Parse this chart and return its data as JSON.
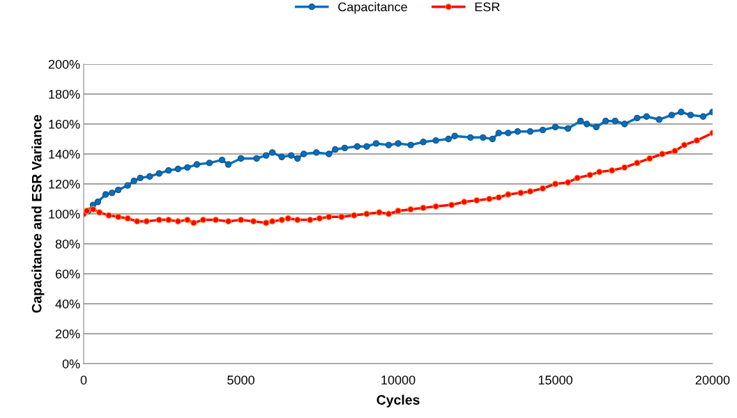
{
  "chart_data": {
    "type": "line",
    "xlabel": "Cycles",
    "ylabel": "Capacitance and ESR Variance",
    "series": [
      {
        "name": "Capacitance",
        "color": "#0070c0",
        "x": [
          0,
          150,
          300,
          450,
          700,
          900,
          1100,
          1400,
          1600,
          1800,
          2100,
          2400,
          2700,
          3000,
          3300,
          3600,
          4000,
          4400,
          4600,
          5000,
          5500,
          5800,
          6000,
          6300,
          6600,
          6800,
          7000,
          7400,
          7800,
          8000,
          8300,
          8700,
          9000,
          9300,
          9700,
          10000,
          10400,
          10800,
          11200,
          11600,
          11800,
          12300,
          12700,
          13000,
          13200,
          13500,
          13800,
          14200,
          14600,
          15000,
          15400,
          15800,
          16000,
          16300,
          16600,
          16900,
          17200,
          17600,
          17900,
          18300,
          18700,
          19000,
          19300,
          19700,
          20000
        ],
        "values": [
          100,
          102,
          106,
          108,
          113,
          114,
          116,
          119,
          122,
          124,
          125,
          127,
          129,
          130,
          131,
          133,
          134,
          136,
          133,
          137,
          137,
          139,
          141,
          138,
          139,
          137,
          140,
          141,
          140,
          143,
          144,
          145,
          145,
          147,
          146,
          147,
          146,
          148,
          149,
          150,
          152,
          151,
          151,
          150,
          154,
          154,
          155,
          155,
          156,
          158,
          157,
          162,
          160,
          158,
          162,
          162,
          160,
          164,
          165,
          163,
          166,
          168,
          166,
          165,
          168
        ]
      },
      {
        "name": "ESR",
        "color": "#ff0000",
        "x": [
          0,
          100,
          300,
          500,
          800,
          1100,
          1400,
          1700,
          2000,
          2400,
          2700,
          3000,
          3300,
          3500,
          3800,
          4200,
          4600,
          5000,
          5400,
          5800,
          6000,
          6300,
          6500,
          6800,
          7200,
          7500,
          7800,
          8200,
          8600,
          9000,
          9400,
          9700,
          10000,
          10400,
          10800,
          11200,
          11700,
          12100,
          12500,
          12900,
          13200,
          13500,
          13900,
          14200,
          14600,
          15000,
          15400,
          15700,
          16100,
          16400,
          16800,
          17200,
          17600,
          18000,
          18400,
          18800,
          19100,
          19500,
          20000
        ],
        "values": [
          100,
          102,
          103,
          101,
          99,
          98,
          97,
          95,
          95,
          96,
          96,
          95,
          96,
          94,
          96,
          96,
          95,
          96,
          95,
          94,
          95,
          96,
          97,
          96,
          96,
          97,
          98,
          98,
          99,
          100,
          101,
          100,
          102,
          103,
          104,
          105,
          106,
          108,
          109,
          110,
          111,
          113,
          114,
          115,
          117,
          120,
          121,
          124,
          126,
          128,
          129,
          131,
          134,
          137,
          140,
          142,
          146,
          149,
          154
        ]
      }
    ],
    "xlim": [
      0,
      20000
    ],
    "xticks": [
      0,
      5000,
      10000,
      15000,
      20000
    ],
    "ylim": [
      0,
      200
    ],
    "yticks": [
      {
        "value": 0,
        "label": "0%"
      },
      {
        "value": 20,
        "label": "20%"
      },
      {
        "value": 40,
        "label": "40%"
      },
      {
        "value": 60,
        "label": "60%"
      },
      {
        "value": 80,
        "label": "80%"
      },
      {
        "value": 100,
        "label": "100%"
      },
      {
        "value": 120,
        "label": "120%"
      },
      {
        "value": 140,
        "label": "140%"
      },
      {
        "value": 160,
        "label": "160%"
      },
      {
        "value": 180,
        "label": "180%"
      },
      {
        "value": 200,
        "label": "200%"
      }
    ],
    "grid": "y",
    "legend": "top",
    "marker": "circle",
    "line_style": "solid"
  }
}
